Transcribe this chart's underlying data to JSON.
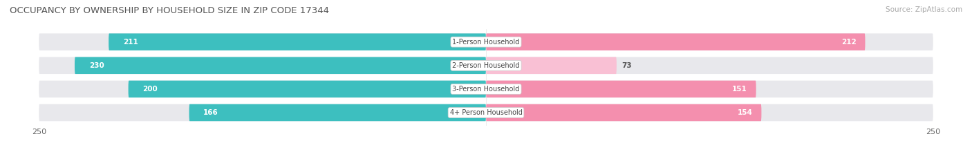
{
  "title": "OCCUPANCY BY OWNERSHIP BY HOUSEHOLD SIZE IN ZIP CODE 17344",
  "source": "Source: ZipAtlas.com",
  "categories": [
    "1-Person Household",
    "2-Person Household",
    "3-Person Household",
    "4+ Person Household"
  ],
  "owner_values": [
    211,
    230,
    200,
    166
  ],
  "renter_values": [
    212,
    73,
    151,
    154
  ],
  "owner_color": "#3DBFBF",
  "renter_color": "#F48FAE",
  "renter_color_light": "#F9C0D4",
  "background_color": "#ffffff",
  "bar_bg_color": "#e8e8ec",
  "label_color": "#ffffff",
  "axis_max": 250,
  "title_fontsize": 9.5,
  "source_fontsize": 7.5,
  "bar_label_fontsize": 7.5,
  "category_fontsize": 7.0,
  "legend_fontsize": 8,
  "axis_tick_fontsize": 8,
  "bar_height": 0.72,
  "row_sep_color": "#ffffff"
}
